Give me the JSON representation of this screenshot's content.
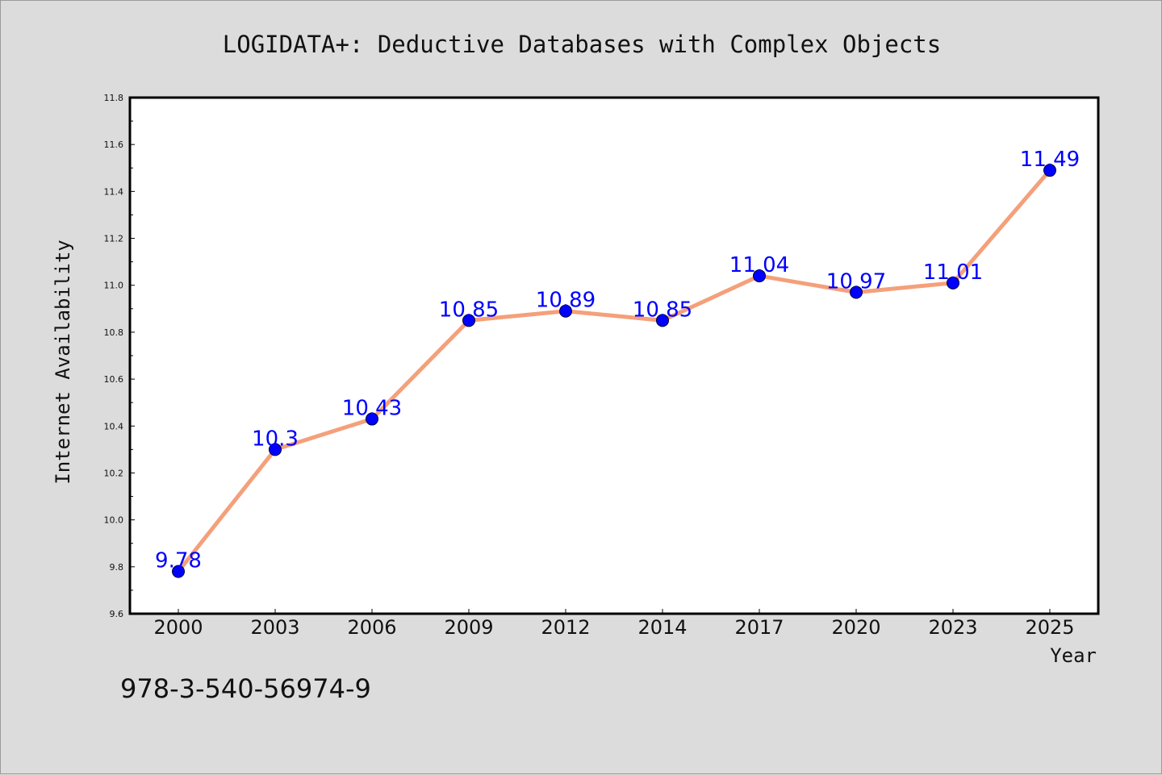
{
  "chart_data": {
    "type": "line",
    "title": "LOGIDATA+: Deductive Databases with Complex Objects",
    "xlabel": "Year",
    "ylabel": "Internet Availability",
    "categories": [
      "2000",
      "2003",
      "2006",
      "2009",
      "2012",
      "2014",
      "2017",
      "2020",
      "2023",
      "2025"
    ],
    "series": [
      {
        "values": [
          9.78,
          10.3,
          10.43,
          10.85,
          10.89,
          10.85,
          11.04,
          10.97,
          11.01,
          11.49
        ],
        "labels": [
          "9.78",
          "10.3",
          "10.43",
          "10.85",
          "10.89",
          "10.85",
          "11.04",
          "10.97",
          "11.01",
          "11.49"
        ],
        "line_color": "#f4a07a",
        "marker_color": "#0000ff"
      }
    ],
    "ylim": [
      9.6,
      11.8
    ],
    "yticks": [
      "9.6",
      "9.8",
      "10.0",
      "10.2",
      "10.4",
      "10.6",
      "10.8",
      "11.0",
      "11.2",
      "11.4",
      "11.6",
      "11.8"
    ],
    "grid": false,
    "legend": "none"
  },
  "footer": {
    "isbn": "978-3-540-56974-9"
  }
}
